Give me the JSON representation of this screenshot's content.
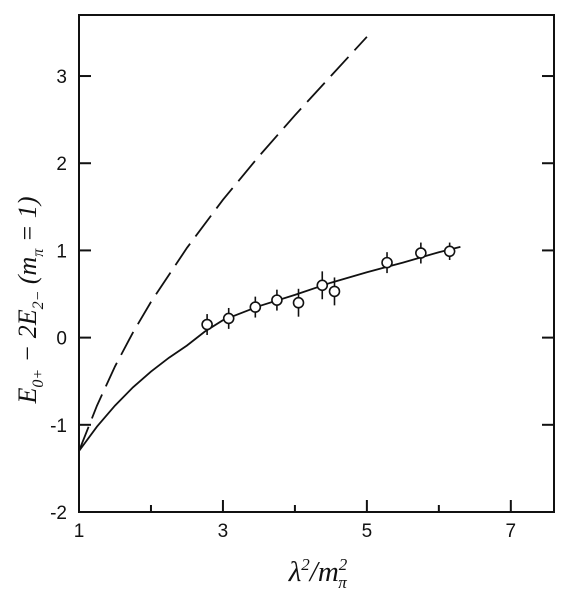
{
  "chart_data": {
    "type": "scatter",
    "title": "",
    "xlabel": "λ²/mπ²",
    "ylabel": "E0+ − 2E2− (mπ = 1)",
    "xlim": [
      1,
      7.6
    ],
    "ylim": [
      -2,
      3.7
    ],
    "x_ticks": [
      1,
      3,
      5,
      7
    ],
    "x_tick_labels": [
      "1",
      "3",
      "5",
      "7"
    ],
    "x_minor_ticks": [
      2,
      4,
      6
    ],
    "y_ticks": [
      -2,
      -1,
      0,
      1,
      2,
      3
    ],
    "y_tick_labels": [
      "-2",
      "-1",
      "0",
      "1",
      "2",
      "3"
    ],
    "grid": false,
    "legend": "none",
    "series": [
      {
        "style": "dashed-line",
        "x": [
          1.0,
          1.25,
          1.5,
          1.75,
          2.0,
          2.5,
          3.0,
          3.5,
          4.0,
          4.5,
          5.0
        ],
        "y": [
          -1.3,
          -0.78,
          -0.33,
          0.06,
          0.41,
          1.03,
          1.58,
          2.08,
          2.55,
          3.0,
          3.45
        ]
      },
      {
        "style": "solid-line",
        "x": [
          1.0,
          1.25,
          1.5,
          1.75,
          2.0,
          2.25,
          2.5,
          2.75,
          3.0,
          3.5,
          4.0,
          4.5,
          5.0,
          5.5,
          6.0,
          6.3
        ],
        "y": [
          -1.3,
          -1.02,
          -0.78,
          -0.57,
          -0.39,
          -0.23,
          -0.09,
          0.07,
          0.2,
          0.36,
          0.49,
          0.63,
          0.75,
          0.86,
          0.98,
          1.04
        ]
      },
      {
        "style": "points-with-error-bars",
        "x": [
          2.78,
          3.08,
          3.45,
          3.75,
          4.05,
          4.38,
          4.55,
          5.28,
          5.75,
          6.15
        ],
        "y": [
          0.15,
          0.22,
          0.35,
          0.43,
          0.4,
          0.6,
          0.53,
          0.86,
          0.97,
          0.99
        ],
        "err": [
          0.12,
          0.12,
          0.12,
          0.12,
          0.16,
          0.16,
          0.16,
          0.12,
          0.12,
          0.1
        ]
      }
    ]
  }
}
